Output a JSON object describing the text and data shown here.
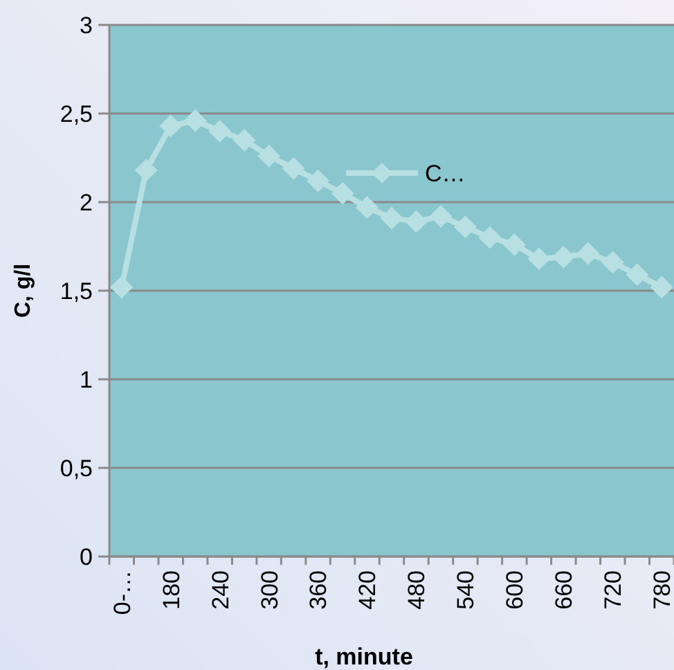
{
  "chart_data": {
    "type": "line",
    "xlabel": "t, minute",
    "ylabel": "C, g/l",
    "categories": [
      "0-…",
      null,
      "180",
      null,
      "240",
      null,
      "300",
      null,
      "360",
      null,
      "420",
      null,
      "480",
      null,
      "540",
      null,
      "600",
      null,
      "660",
      null,
      "720",
      null,
      "780"
    ],
    "series": [
      {
        "name": "C…",
        "color": "#b8e0e3",
        "values": [
          1.52,
          2.18,
          2.43,
          2.46,
          2.4,
          2.35,
          2.26,
          2.19,
          2.12,
          2.05,
          1.97,
          1.91,
          1.89,
          1.92,
          1.86,
          1.8,
          1.76,
          1.68,
          1.69,
          1.71,
          1.66,
          1.59,
          1.52
        ]
      }
    ],
    "ylim": [
      0,
      3
    ],
    "yticks": [
      0,
      {
        "value": 0.5,
        "label": "0,5"
      },
      1,
      {
        "value": 1.5,
        "label": "1,5"
      },
      2,
      {
        "value": 2.5,
        "label": "2,5"
      },
      3
    ],
    "grid": "y",
    "legend": "top right",
    "marker": "diamond",
    "line_style": "solid"
  }
}
